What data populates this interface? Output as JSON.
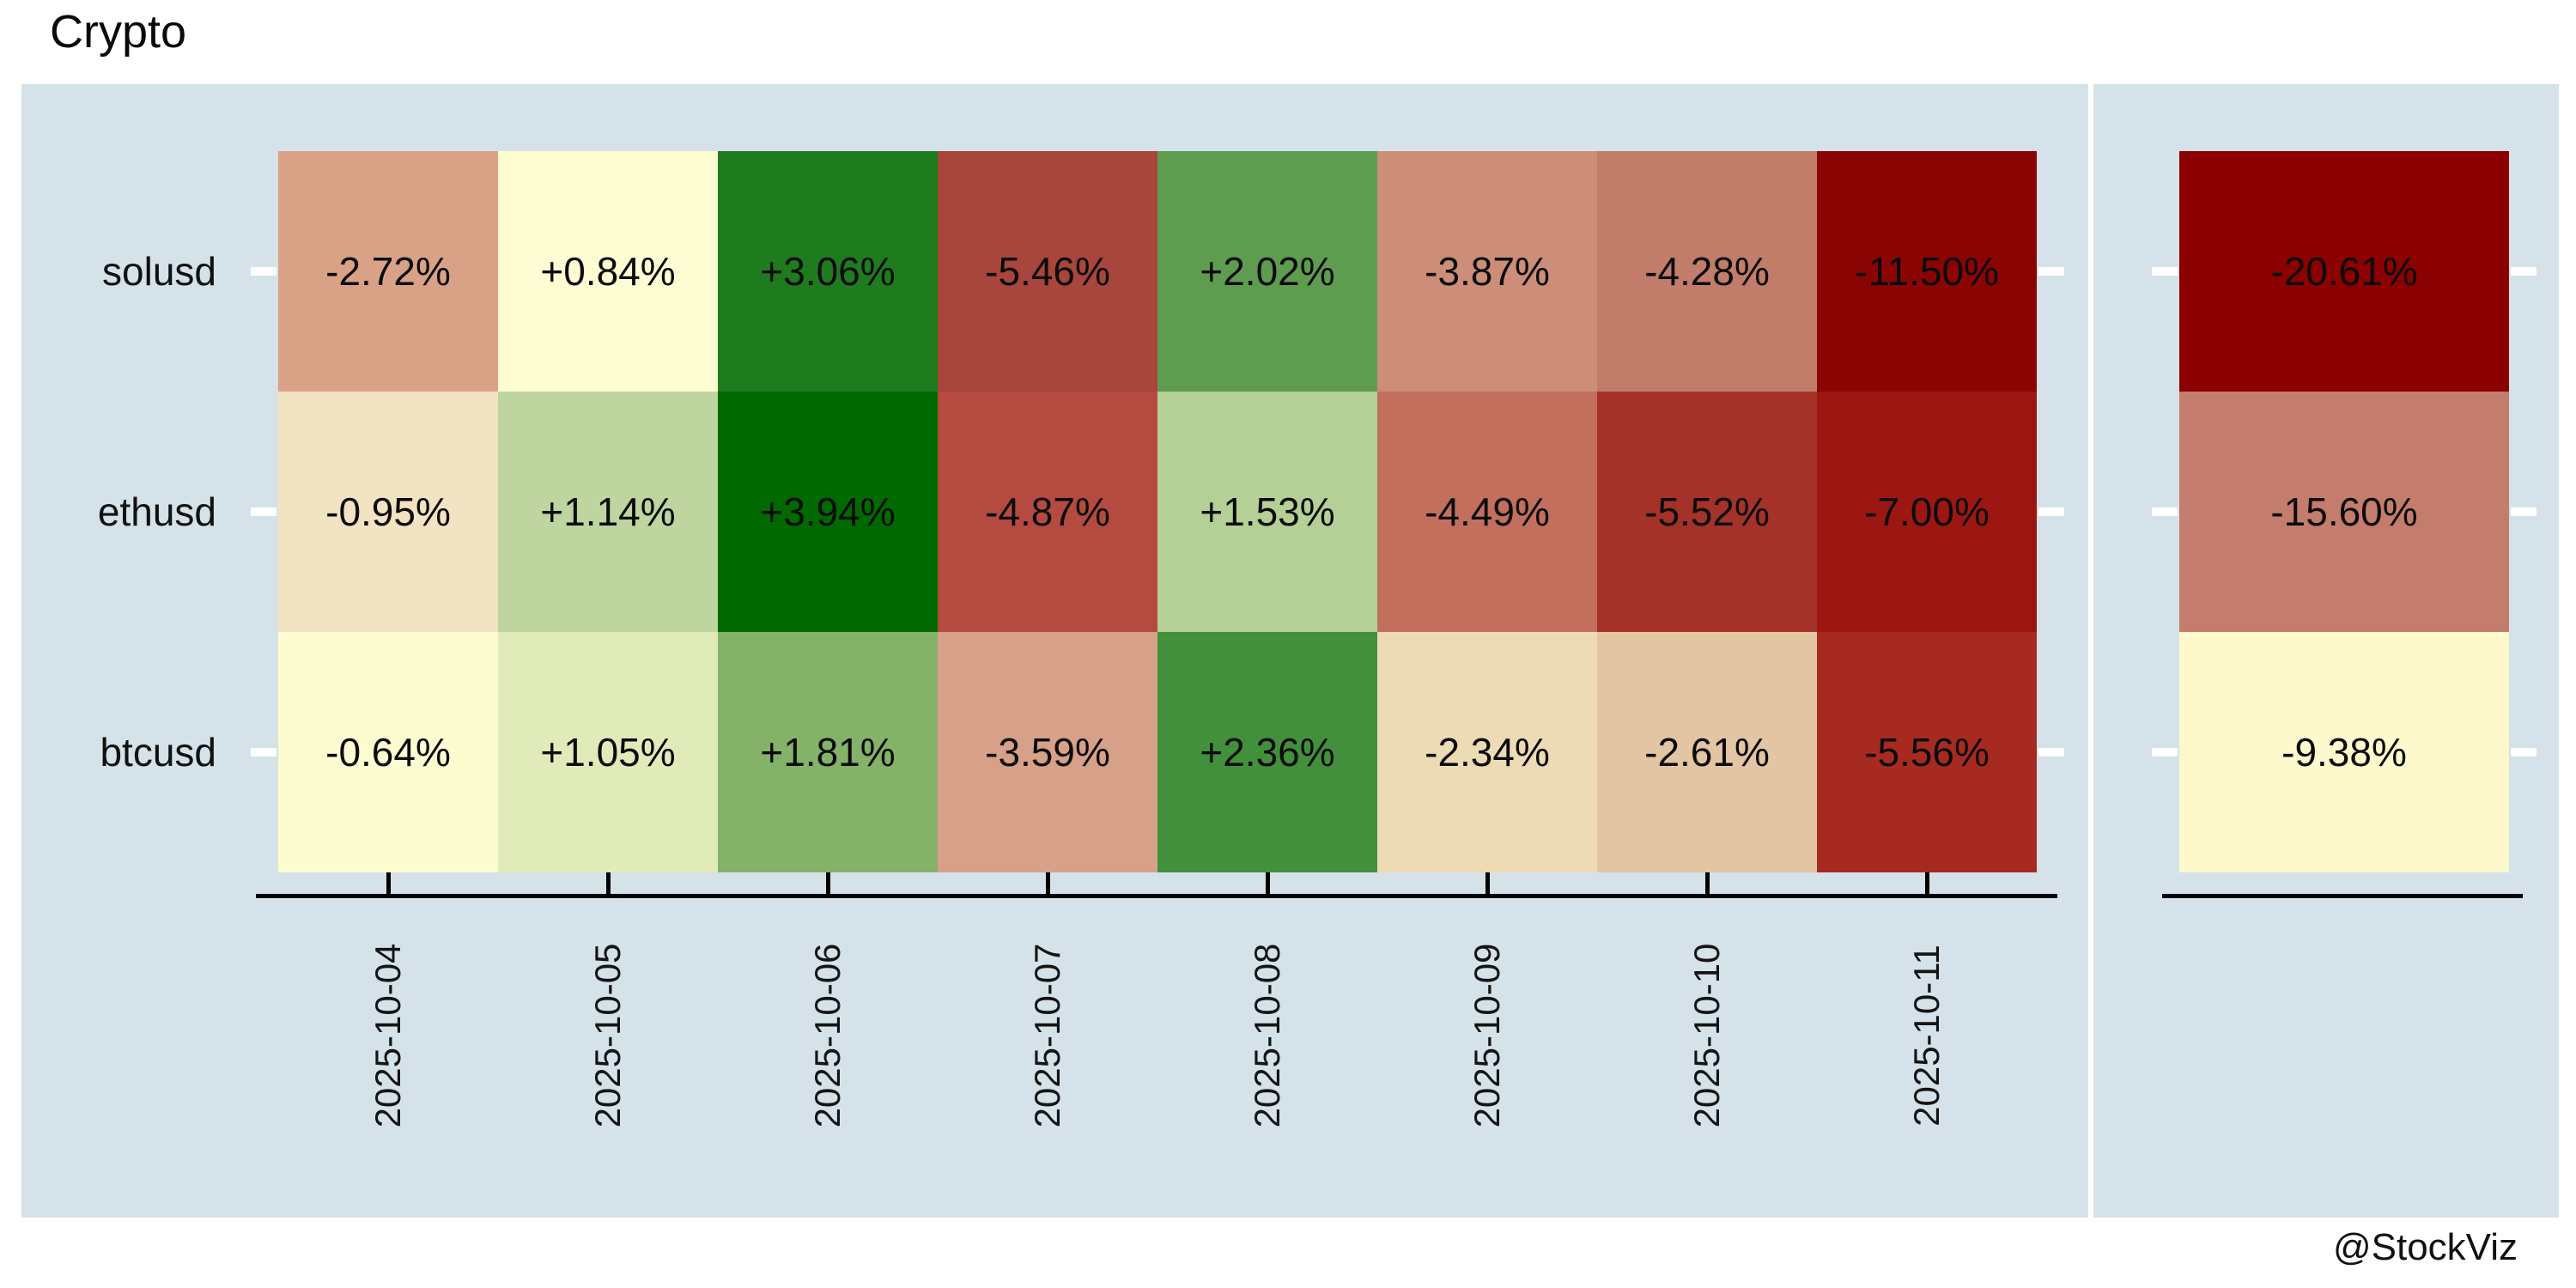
{
  "title": "Crypto",
  "watermark": "@StockViz",
  "style": {
    "panel_bg": "#d5e2e9",
    "axis_color": "#000000",
    "tick_color_outside": "#ffffff",
    "text_color": "#0b0b0b"
  },
  "chart_data": {
    "type": "heatmap",
    "title": "Crypto",
    "subtitle": "",
    "legend": "none",
    "colormap": "red-yellow-green diverging (daily % return)",
    "columns": [
      "2025-10-04",
      "2025-10-05",
      "2025-10-06",
      "2025-10-07",
      "2025-10-08",
      "2025-10-09",
      "2025-10-10",
      "2025-10-11"
    ],
    "rows": [
      "solusd",
      "ethusd",
      "btcusd"
    ],
    "values_pct": [
      [
        -2.72,
        0.84,
        3.06,
        -5.46,
        2.02,
        -3.87,
        -4.28,
        -11.5
      ],
      [
        -0.95,
        1.14,
        3.94,
        -4.87,
        1.53,
        -4.49,
        -5.52,
        -7.0
      ],
      [
        -0.64,
        1.05,
        1.81,
        -3.59,
        2.36,
        -2.34,
        -2.61,
        -5.56
      ]
    ],
    "cell_labels": [
      [
        "-2.72%",
        "+0.84%",
        "+3.06%",
        "-5.46%",
        "+2.02%",
        "-3.87%",
        "-4.28%",
        "-11.50%"
      ],
      [
        "-0.95%",
        "+1.14%",
        "+3.94%",
        "-4.87%",
        "+1.53%",
        "-4.49%",
        "-5.52%",
        "-7.00%"
      ],
      [
        "-0.64%",
        "+1.05%",
        "+1.81%",
        "-3.59%",
        "+2.36%",
        "-2.34%",
        "-2.61%",
        "-5.56%"
      ]
    ],
    "cell_colors": [
      [
        "#d9a287",
        "#fdfcd2",
        "#1e7b1e",
        "#a8453c",
        "#5e9c50",
        "#cd8e79",
        "#c17d6a",
        "#8b0404"
      ],
      [
        "#f2e3c2",
        "#bed59f",
        "#006900",
        "#b44a40",
        "#b5d096",
        "#c26f5d",
        "#a43229",
        "#9c1711"
      ],
      [
        "#fdfcd1",
        "#e1ebba",
        "#84b269",
        "#d7a189",
        "#42903b",
        "#eddbb5",
        "#e3c5a4",
        "#a72a20"
      ]
    ],
    "totals": {
      "values_pct": [
        -20.61,
        -15.6,
        -9.38
      ],
      "labels": [
        "-20.61%",
        "-15.60%",
        "-9.38%"
      ],
      "colors": [
        "#8b0000",
        "#c47d6c",
        "#fdf9cd"
      ]
    }
  }
}
